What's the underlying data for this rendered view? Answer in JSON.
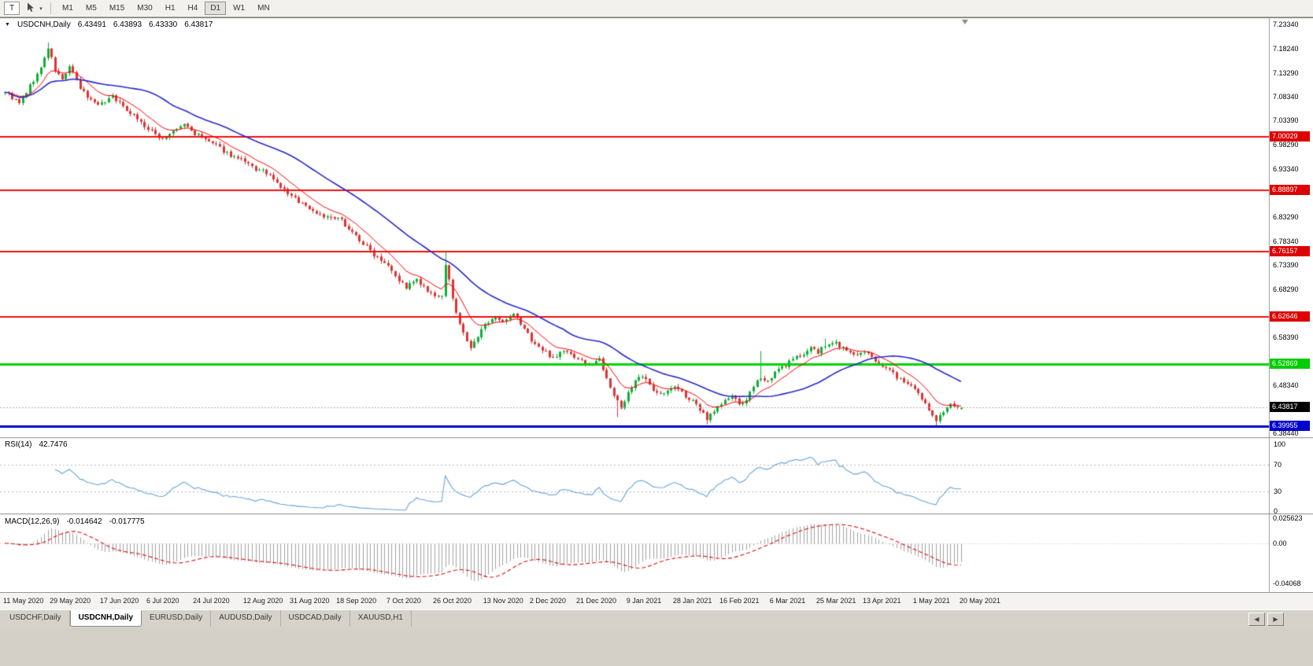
{
  "toolbar": {
    "t_button": "T",
    "timeframes": [
      "M1",
      "M5",
      "M15",
      "M30",
      "H1",
      "H4",
      "D1",
      "W1",
      "MN"
    ],
    "active_timeframe": "D1"
  },
  "symbol_panel": {
    "marker": "▼",
    "symbol": "USDCNH,Daily",
    "open": "6.43491",
    "high": "6.43893",
    "low": "6.43330",
    "close": "6.43817"
  },
  "rsi": {
    "title": "RSI(14)",
    "value": "42.7476",
    "color": "#68a4da",
    "levels": [
      70,
      30
    ],
    "axis": [
      {
        "text": "100",
        "value": 100
      },
      {
        "text": "70",
        "value": 70
      },
      {
        "text": "30",
        "value": 30
      },
      {
        "text": "0",
        "value": 0
      }
    ]
  },
  "macd": {
    "title": "MACD(12,26,9)",
    "value_main": "-0.014642",
    "value_signal": "-0.017775",
    "hist_color": "#a2a2a2",
    "signal_color": "#e01010",
    "axis": [
      {
        "text": "0.025623",
        "value": 0.025623
      },
      {
        "text": "0.00",
        "value": 0
      },
      {
        "text": "-0.04068",
        "value": -0.04068
      }
    ]
  },
  "tabs": [
    {
      "label": "USDCHF,Daily",
      "active": false
    },
    {
      "label": "USDCNH,Daily",
      "active": true
    },
    {
      "label": "EURUSD,Daily",
      "active": false
    },
    {
      "label": "AUDUSD,Daily",
      "active": false
    },
    {
      "label": "USDCAD,Daily",
      "active": false
    },
    {
      "label": "XAUUSD,H1",
      "active": false
    }
  ],
  "tab_scroll": {
    "left": "◀",
    "right": "▶"
  },
  "chart_data": {
    "type": "candlestick",
    "title": "USDCNH,Daily",
    "bar_count": 268,
    "noise_seed": 9,
    "current_price": 6.43817,
    "last_candle": {
      "open": 6.43491,
      "high": 6.43893,
      "low": 6.4333,
      "close": 6.43817
    },
    "candle_colors": {
      "bull": "#0fae36",
      "bear": "#e03232"
    },
    "price_axis": {
      "top": 7.2334,
      "bottom": 6.3844,
      "ticks": [
        {
          "text": "7.23340",
          "value": 7.2334
        },
        {
          "text": "7.18240",
          "value": 7.1824
        },
        {
          "text": "7.13290",
          "value": 7.1329
        },
        {
          "text": "7.08340",
          "value": 7.0834
        },
        {
          "text": "7.03390",
          "value": 7.0339
        },
        {
          "text": "6.98290",
          "value": 6.9829
        },
        {
          "text": "6.93340",
          "value": 6.9334
        },
        {
          "text": "6.83290",
          "value": 6.8329
        },
        {
          "text": "6.78340",
          "value": 6.7834
        },
        {
          "text": "6.73390",
          "value": 6.7339
        },
        {
          "text": "6.68290",
          "value": 6.6829
        },
        {
          "text": "6.58390",
          "value": 6.5839
        },
        {
          "text": "6.48340",
          "value": 6.4834
        },
        {
          "text": "6.38440",
          "value": 6.3844
        }
      ]
    },
    "price_badges": [
      {
        "text": "7.00029",
        "value": 7.00029,
        "type": "resistance-1",
        "bg": "#dd0000",
        "fg": "#ffffff"
      },
      {
        "text": "6.88897",
        "value": 6.88897,
        "type": "resistance-2",
        "bg": "#dd0000",
        "fg": "#ffffff"
      },
      {
        "text": "6.76157",
        "value": 6.76157,
        "type": "resistance-3",
        "bg": "#dd0000",
        "fg": "#ffffff"
      },
      {
        "text": "6.62646",
        "value": 6.62646,
        "type": "resistance-4",
        "bg": "#dd0000",
        "fg": "#ffffff"
      },
      {
        "text": "6.52869",
        "value": 6.52869,
        "type": "support-green",
        "bg": "#00cc00",
        "fg": "#ffffff"
      },
      {
        "text": "6.43817",
        "value": 6.43817,
        "type": "current-price",
        "bg": "#000000",
        "fg": "#ffffff"
      },
      {
        "text": "6.39955",
        "value": 6.39955,
        "type": "support-blue",
        "bg": "#0000cc",
        "fg": "#ffffff"
      }
    ],
    "horizontal_lines": [
      {
        "value": 7.00029,
        "color": "#ee1111",
        "width": 2
      },
      {
        "value": 6.88897,
        "color": "#ee1111",
        "width": 2
      },
      {
        "value": 6.76157,
        "color": "#ee1111",
        "width": 2
      },
      {
        "value": 6.62646,
        "color": "#ee1111",
        "width": 2
      },
      {
        "value": 6.52869,
        "color": "#00d400",
        "width": 3
      },
      {
        "value": 6.39955,
        "color": "#0000cd",
        "width": 3
      }
    ],
    "ma": [
      {
        "type": "ema",
        "period": 10,
        "color": "#ff0000",
        "width": 1
      },
      {
        "type": "sma",
        "period": 34,
        "color": "#2a2acc",
        "width": 1.6
      }
    ],
    "x_labels": [
      "11 May 2020",
      "29 May 2020",
      "17 Jun 2020",
      "6 Jul 2020",
      "24 Jul 2020",
      "12 Aug 2020",
      "31 Aug 2020",
      "18 Sep 2020",
      "7 Oct 2020",
      "26 Oct 2020",
      "13 Nov 2020",
      "2 Dec 2020",
      "21 Dec 2020",
      "9 Jan 2021",
      "28 Jan 2021",
      "16 Feb 2021",
      "6 Mar 2021",
      "25 Mar 2021",
      "13 Apr 2021",
      "1 May 2021",
      "20 May 2021"
    ],
    "trend_anchors": [
      [
        0,
        7.095
      ],
      [
        4,
        7.068
      ],
      [
        7,
        7.105
      ],
      [
        10,
        7.142
      ],
      [
        12,
        7.185
      ],
      [
        14,
        7.138
      ],
      [
        16,
        7.118
      ],
      [
        18,
        7.146
      ],
      [
        21,
        7.1
      ],
      [
        24,
        7.076
      ],
      [
        27,
        7.068
      ],
      [
        30,
        7.086
      ],
      [
        33,
        7.062
      ],
      [
        36,
        7.046
      ],
      [
        40,
        7.014
      ],
      [
        44,
        6.996
      ],
      [
        47,
        7.01
      ],
      [
        50,
        7.026
      ],
      [
        53,
        7.006
      ],
      [
        57,
        6.99
      ],
      [
        60,
        6.976
      ],
      [
        63,
        6.962
      ],
      [
        67,
        6.946
      ],
      [
        70,
        6.932
      ],
      [
        73,
        6.926
      ],
      [
        76,
        6.902
      ],
      [
        80,
        6.876
      ],
      [
        83,
        6.862
      ],
      [
        86,
        6.846
      ],
      [
        90,
        6.832
      ],
      [
        94,
        6.826
      ],
      [
        97,
        6.802
      ],
      [
        100,
        6.778
      ],
      [
        103,
        6.756
      ],
      [
        107,
        6.736
      ],
      [
        110,
        6.702
      ],
      [
        112,
        6.688
      ],
      [
        115,
        6.702
      ],
      [
        118,
        6.678
      ],
      [
        120,
        6.666
      ],
      [
        122,
        6.672
      ],
      [
        123,
        6.73
      ],
      [
        124,
        6.7
      ],
      [
        126,
        6.636
      ],
      [
        128,
        6.59
      ],
      [
        130,
        6.562
      ],
      [
        132,
        6.582
      ],
      [
        133,
        6.6
      ],
      [
        136,
        6.626
      ],
      [
        139,
        6.612
      ],
      [
        142,
        6.63
      ],
      [
        145,
        6.602
      ],
      [
        147,
        6.578
      ],
      [
        150,
        6.556
      ],
      [
        153,
        6.542
      ],
      [
        156,
        6.556
      ],
      [
        160,
        6.54
      ],
      [
        163,
        6.526
      ],
      [
        166,
        6.538
      ],
      [
        168,
        6.502
      ],
      [
        170,
        6.462
      ],
      [
        172,
        6.436
      ],
      [
        174,
        6.47
      ],
      [
        176,
        6.492
      ],
      [
        178,
        6.502
      ],
      [
        181,
        6.476
      ],
      [
        184,
        6.466
      ],
      [
        187,
        6.482
      ],
      [
        190,
        6.462
      ],
      [
        193,
        6.442
      ],
      [
        196,
        6.416
      ],
      [
        198,
        6.432
      ],
      [
        200,
        6.446
      ],
      [
        203,
        6.462
      ],
      [
        205,
        6.442
      ],
      [
        207,
        6.456
      ],
      [
        209,
        6.478
      ],
      [
        211,
        6.502
      ],
      [
        213,
        6.492
      ],
      [
        214,
        6.502
      ],
      [
        216,
        6.516
      ],
      [
        219,
        6.532
      ],
      [
        222,
        6.546
      ],
      [
        225,
        6.562
      ],
      [
        227,
        6.552
      ],
      [
        229,
        6.566
      ],
      [
        232,
        6.572
      ],
      [
        235,
        6.556
      ],
      [
        238,
        6.546
      ],
      [
        240,
        6.552
      ],
      [
        243,
        6.536
      ],
      [
        246,
        6.522
      ],
      [
        249,
        6.502
      ],
      [
        252,
        6.486
      ],
      [
        254,
        6.472
      ],
      [
        256,
        6.456
      ],
      [
        258,
        6.432
      ],
      [
        260,
        6.414
      ],
      [
        262,
        6.43
      ],
      [
        264,
        6.442
      ],
      [
        266,
        6.436
      ],
      [
        267,
        6.43817
      ]
    ],
    "forced_extremes": [
      {
        "i": 12,
        "high": 7.196
      },
      {
        "i": 123,
        "high": 6.7613
      },
      {
        "i": 171,
        "low": 6.418
      },
      {
        "i": 196,
        "low": 6.403
      },
      {
        "i": 211,
        "high": 6.555
      },
      {
        "i": 229,
        "high": 6.581
      },
      {
        "i": 260,
        "low": 6.4
      }
    ],
    "indicators": [
      {
        "name": "RSI",
        "params": "14",
        "last": 42.7476,
        "levels": [
          70,
          30
        ],
        "range": [
          0,
          100
        ]
      },
      {
        "name": "MACD",
        "params": "12,26,9",
        "last_main": -0.014642,
        "last_signal": -0.017775,
        "scale": [
          0.025623,
          0,
          -0.04068
        ]
      }
    ]
  }
}
